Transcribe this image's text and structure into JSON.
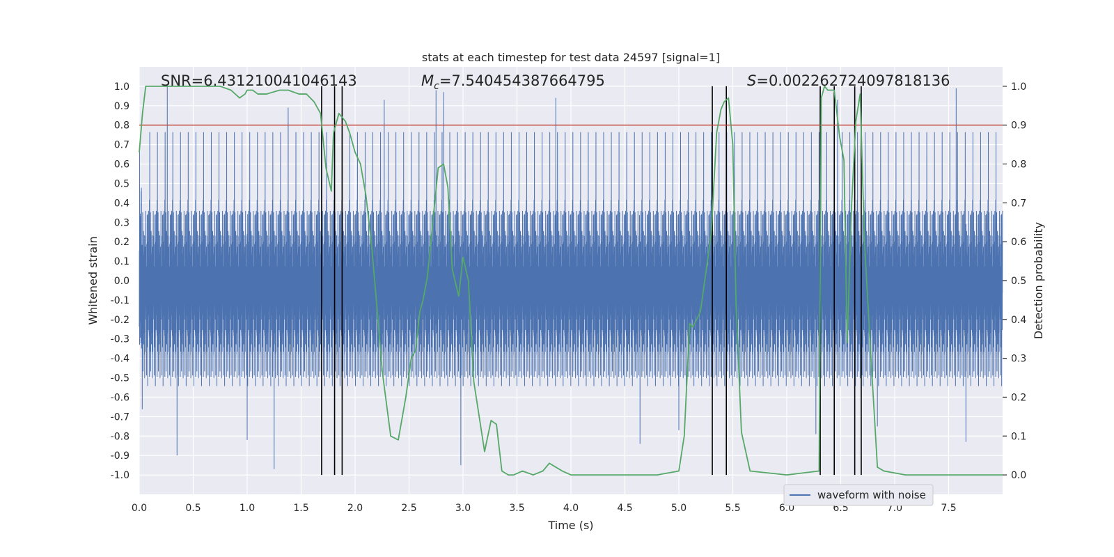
{
  "chart_data": {
    "type": "line",
    "title": "stats at each timestep for test data 24597 [signal=1]",
    "xlabel": "Time (s)",
    "ylabel_left": "Whitened strain",
    "ylabel_right": "Detection probability",
    "xlim": [
      0.0,
      8.0
    ],
    "ylim_left": [
      -1.1,
      1.1
    ],
    "ylim_right": [
      -0.05,
      1.05
    ],
    "x_ticks": [
      0.0,
      0.5,
      1.0,
      1.5,
      2.0,
      2.5,
      3.0,
      3.5,
      4.0,
      4.5,
      5.0,
      5.5,
      6.0,
      6.5,
      7.0,
      7.5
    ],
    "x_tick_labels": [
      "0.0",
      "0.5",
      "1.0",
      "1.5",
      "2.0",
      "2.5",
      "3.0",
      "3.5",
      "4.0",
      "4.5",
      "5.0",
      "5.5",
      "6.0",
      "6.5",
      "7.0",
      "7.5"
    ],
    "y_left_ticks": [
      1.0,
      0.9,
      0.8,
      0.7,
      0.6,
      0.5,
      0.4,
      0.3,
      0.2,
      0.1,
      0.0,
      -0.1,
      -0.2,
      -0.3,
      -0.4,
      -0.5,
      -0.6,
      -0.7,
      -0.8,
      -0.9,
      -1.0
    ],
    "y_left_tick_labels": [
      "1.0",
      "0.9",
      "0.8",
      "0.7",
      "0.6",
      "0.5",
      "0.4",
      "0.3",
      "0.2",
      "0.1",
      "0.0",
      "-0.1",
      "-0.2",
      "-0.3",
      "-0.4",
      "-0.5",
      "-0.6",
      "-0.7",
      "-0.8",
      "-0.9",
      "-1.0"
    ],
    "y_right_ticks": [
      1.0,
      0.9,
      0.8,
      0.7,
      0.6,
      0.5,
      0.4,
      0.3,
      0.2,
      0.1,
      0.0
    ],
    "y_right_tick_labels": [
      "1.0",
      "0.9",
      "0.8",
      "0.7",
      "0.6",
      "0.5",
      "0.4",
      "0.3",
      "0.2",
      "0.1",
      "0.0"
    ],
    "grid": true,
    "legend_position": "bottom-right",
    "annotations": {
      "snr": "SNR=6.431210041046143",
      "mc_prefix": "M",
      "mc_sub": "c",
      "mc_value": "=7.540454387664795",
      "s_prefix": "S",
      "s_value": "=0.002262724097818136"
    },
    "threshold": {
      "value": 0.9,
      "axis": "right",
      "color": "#c0392b"
    },
    "vertical_lines_x": [
      1.69,
      1.81,
      1.88,
      5.31,
      5.44,
      6.31,
      6.44,
      6.63,
      6.69
    ],
    "series": [
      {
        "name": "waveform with noise",
        "axis": "left",
        "color": "#4c72b0",
        "style": "noise",
        "sample_rate": 2048,
        "envelope_typical": 0.45,
        "peaks": [
          {
            "x": 0.26,
            "y": 1.0
          },
          {
            "x": 0.35,
            "y": -0.9
          },
          {
            "x": 1.0,
            "y": -0.82
          },
          {
            "x": 1.25,
            "y": -0.97
          },
          {
            "x": 1.38,
            "y": 0.89
          },
          {
            "x": 2.27,
            "y": 0.93
          },
          {
            "x": 2.75,
            "y": 0.98
          },
          {
            "x": 2.82,
            "y": 0.97
          },
          {
            "x": 2.98,
            "y": -0.95
          },
          {
            "x": 3.86,
            "y": 0.94
          },
          {
            "x": 5.0,
            "y": -0.77
          },
          {
            "x": 6.27,
            "y": -0.79
          },
          {
            "x": 6.84,
            "y": -0.75
          },
          {
            "x": 7.57,
            "y": 0.99
          },
          {
            "x": 7.66,
            "y": -0.83
          },
          {
            "x": 6.47,
            "y": 0.93
          },
          {
            "x": 4.64,
            "y": -0.84
          }
        ]
      },
      {
        "name": "",
        "axis": "right",
        "color": "#55a868",
        "style": "line",
        "x": [
          0.0,
          0.03,
          0.06,
          0.13,
          0.25,
          0.5,
          0.75,
          0.85,
          0.93,
          0.98,
          1.0,
          1.05,
          1.1,
          1.18,
          1.3,
          1.38,
          1.48,
          1.55,
          1.62,
          1.68,
          1.73,
          1.78,
          1.8,
          1.85,
          1.91,
          1.95,
          2.0,
          2.05,
          2.1,
          2.15,
          2.2,
          2.25,
          2.33,
          2.4,
          2.47,
          2.52,
          2.56,
          2.6,
          2.63,
          2.67,
          2.72,
          2.77,
          2.82,
          2.86,
          2.9,
          2.96,
          3.0,
          3.05,
          3.1,
          3.2,
          3.26,
          3.31,
          3.36,
          3.42,
          3.47,
          3.55,
          3.65,
          3.74,
          3.8,
          3.86,
          3.92,
          4.0,
          4.2,
          4.5,
          4.8,
          5.0,
          5.05,
          5.1,
          5.13,
          5.2,
          5.25,
          5.3,
          5.35,
          5.39,
          5.42,
          5.46,
          5.5,
          5.53,
          5.58,
          5.66,
          6.0,
          6.3,
          6.32,
          6.35,
          6.38,
          6.44,
          6.49,
          6.53,
          6.56,
          6.6,
          6.64,
          6.68,
          6.72,
          6.77,
          6.84,
          6.9,
          7.1,
          7.5,
          8.0
        ],
        "y": [
          0.83,
          0.93,
          1.0,
          1.0,
          1.0,
          1.0,
          1.0,
          0.99,
          0.97,
          0.98,
          0.99,
          0.99,
          0.98,
          0.98,
          0.99,
          0.99,
          0.98,
          0.98,
          0.96,
          0.93,
          0.79,
          0.73,
          0.88,
          0.93,
          0.91,
          0.88,
          0.83,
          0.8,
          0.72,
          0.6,
          0.44,
          0.27,
          0.1,
          0.09,
          0.2,
          0.3,
          0.32,
          0.42,
          0.45,
          0.51,
          0.65,
          0.79,
          0.8,
          0.74,
          0.53,
          0.46,
          0.56,
          0.5,
          0.24,
          0.06,
          0.14,
          0.13,
          0.01,
          0.0,
          0.0,
          0.01,
          0.0,
          0.01,
          0.03,
          0.02,
          0.01,
          0.0,
          0.0,
          0.0,
          0.0,
          0.01,
          0.1,
          0.39,
          0.38,
          0.42,
          0.52,
          0.62,
          0.88,
          0.94,
          0.96,
          0.97,
          0.85,
          0.44,
          0.11,
          0.01,
          0.0,
          0.01,
          0.97,
          1.0,
          0.99,
          0.99,
          0.87,
          0.81,
          0.34,
          0.69,
          0.91,
          0.98,
          0.6,
          0.35,
          0.02,
          0.01,
          0.0,
          0.0,
          0.0
        ]
      }
    ]
  }
}
